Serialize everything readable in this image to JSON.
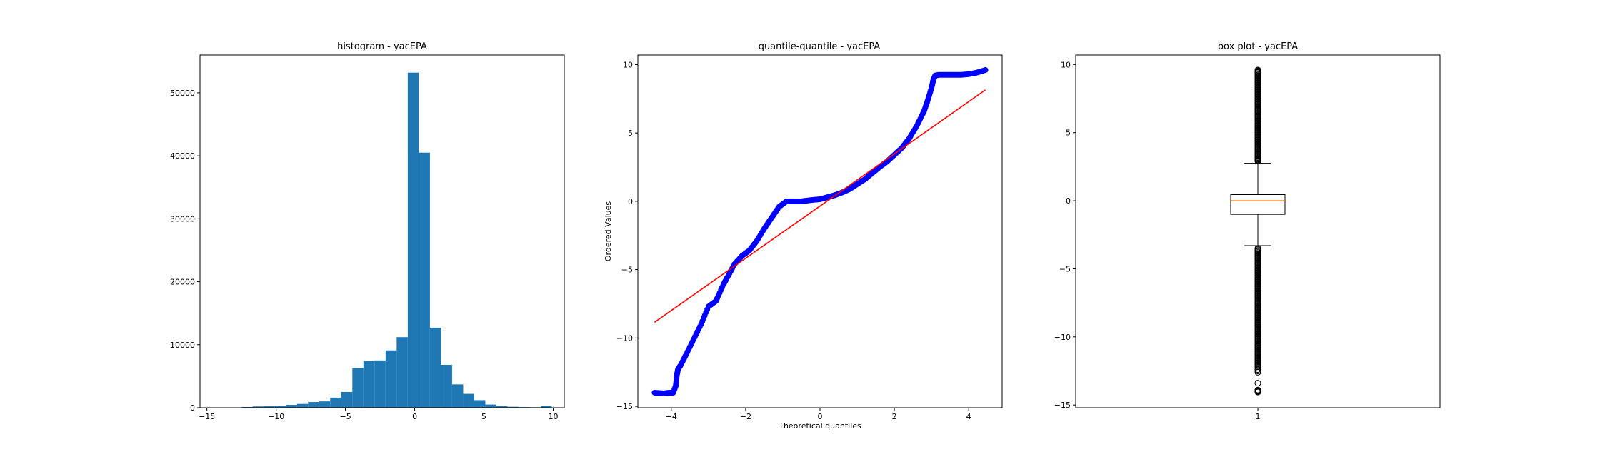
{
  "chart_data": [
    {
      "type": "bar",
      "title": "histogram - yacEPA",
      "xlabel": "",
      "ylabel": "",
      "xlim": [
        -15.5,
        10.8
      ],
      "ylim": [
        0,
        56000
      ],
      "xticks": [
        -15,
        -10,
        -5,
        0,
        5,
        10
      ],
      "yticks": [
        0,
        10000,
        20000,
        30000,
        40000,
        50000
      ],
      "bars": [
        {
          "x0": -14.1,
          "x1": -13.3,
          "value": 20
        },
        {
          "x0": -13.3,
          "x1": -12.5,
          "value": 50
        },
        {
          "x0": -12.5,
          "x1": -11.7,
          "value": 120
        },
        {
          "x0": -11.7,
          "x1": -10.9,
          "value": 200
        },
        {
          "x0": -10.9,
          "x1": -10.1,
          "value": 250
        },
        {
          "x0": -10.1,
          "x1": -9.3,
          "value": 300
        },
        {
          "x0": -9.3,
          "x1": -8.5,
          "value": 450
        },
        {
          "x0": -8.5,
          "x1": -7.7,
          "value": 600
        },
        {
          "x0": -7.7,
          "x1": -6.9,
          "value": 900
        },
        {
          "x0": -6.9,
          "x1": -6.1,
          "value": 1000
        },
        {
          "x0": -6.1,
          "x1": -5.3,
          "value": 1600
        },
        {
          "x0": -5.3,
          "x1": -4.5,
          "value": 2500
        },
        {
          "x0": -4.5,
          "x1": -3.7,
          "value": 6300
        },
        {
          "x0": -3.7,
          "x1": -2.9,
          "value": 7400
        },
        {
          "x0": -2.9,
          "x1": -2.1,
          "value": 7500
        },
        {
          "x0": -2.1,
          "x1": -1.3,
          "value": 9100
        },
        {
          "x0": -1.3,
          "x1": -0.5,
          "value": 11200
        },
        {
          "x0": -0.5,
          "x1": 0.3,
          "value": 53200
        },
        {
          "x0": 0.3,
          "x1": 1.1,
          "value": 40500
        },
        {
          "x0": 1.1,
          "x1": 1.9,
          "value": 12700
        },
        {
          "x0": 1.9,
          "x1": 2.7,
          "value": 6800
        },
        {
          "x0": 2.7,
          "x1": 3.5,
          "value": 3700
        },
        {
          "x0": 3.5,
          "x1": 4.3,
          "value": 2200
        },
        {
          "x0": 4.3,
          "x1": 5.1,
          "value": 1200
        },
        {
          "x0": 5.1,
          "x1": 5.9,
          "value": 500
        },
        {
          "x0": 5.9,
          "x1": 6.7,
          "value": 250
        },
        {
          "x0": 6.7,
          "x1": 7.5,
          "value": 150
        },
        {
          "x0": 7.5,
          "x1": 8.3,
          "value": 100
        },
        {
          "x0": 8.3,
          "x1": 9.1,
          "value": 80
        },
        {
          "x0": 9.1,
          "x1": 9.9,
          "value": 300
        }
      ],
      "color": "#1f77b4"
    },
    {
      "type": "scatter",
      "title": "quantile-quantile - yacEPA",
      "xlabel": "Theoretical quantiles",
      "ylabel": "Ordered Values",
      "xlim": [
        -4.9,
        4.9
      ],
      "ylim": [
        -15.1,
        10.7
      ],
      "xticks": [
        -4,
        -2,
        0,
        2,
        4
      ],
      "yticks": [
        -15,
        -10,
        -5,
        0,
        5,
        10
      ],
      "points": {
        "x": [
          -4.45,
          -4.2,
          -4.05,
          -3.95,
          -3.88,
          -3.85,
          -3.82,
          -3.8,
          -3.75,
          -3.6,
          -3.4,
          -3.2,
          -3.0,
          -2.8,
          -2.6,
          -2.5,
          -2.3,
          -2.1,
          -1.9,
          -1.7,
          -1.5,
          -1.3,
          -1.1,
          -0.9,
          -0.7,
          -0.5,
          -0.35,
          -0.2,
          0.0,
          0.2,
          0.4,
          0.6,
          0.8,
          1.0,
          1.2,
          1.4,
          1.6,
          1.8,
          2.0,
          2.2,
          2.4,
          2.6,
          2.8,
          2.9,
          3.0,
          3.05,
          3.1,
          3.2,
          3.4,
          3.6,
          3.8,
          4.0,
          4.2,
          4.45
        ],
        "y": [
          -14.0,
          -14.05,
          -14.0,
          -14.0,
          -13.5,
          -12.7,
          -12.3,
          -12.2,
          -12.0,
          -11.2,
          -10.1,
          -9.0,
          -7.7,
          -7.3,
          -6.1,
          -5.6,
          -4.6,
          -4.0,
          -3.6,
          -2.9,
          -2.0,
          -1.2,
          -0.4,
          0.0,
          0.0,
          0.0,
          0.05,
          0.1,
          0.15,
          0.3,
          0.45,
          0.65,
          0.9,
          1.25,
          1.6,
          2.05,
          2.5,
          2.9,
          3.4,
          3.9,
          4.6,
          5.5,
          6.6,
          7.4,
          8.3,
          8.9,
          9.2,
          9.25,
          9.25,
          9.25,
          9.25,
          9.3,
          9.4,
          9.6
        ]
      },
      "fit_line": {
        "x": [
          -4.45,
          4.45
        ],
        "y": [
          -8.85,
          8.15
        ]
      },
      "point_color": "#0000ff",
      "line_color": "#ff0000"
    },
    {
      "type": "box",
      "title": "box plot - yacEPA",
      "xlabel": "",
      "ylabel": "",
      "ylim": [
        -15.2,
        10.7
      ],
      "yticks": [
        -15,
        -10,
        -5,
        0,
        5,
        10
      ],
      "xticks": [
        1
      ],
      "box": {
        "median": 0.0,
        "q1": -1.0,
        "q3": 0.45,
        "whisker_low": -3.3,
        "whisker_high": 2.75,
        "fliers_high": [
          2.9,
          3.1,
          3.4,
          3.7,
          4.0,
          4.3,
          4.6,
          4.9,
          5.2,
          5.5,
          5.8,
          6.1,
          6.4,
          6.7,
          7.0,
          7.3,
          7.6,
          7.9,
          8.2,
          8.5,
          8.8,
          9.1,
          9.4,
          9.6
        ],
        "fliers_low": [
          -3.5,
          -3.8,
          -4.1,
          -4.4,
          -4.7,
          -5.0,
          -5.3,
          -5.6,
          -5.9,
          -6.2,
          -6.5,
          -6.8,
          -7.1,
          -7.4,
          -7.7,
          -8.0,
          -8.3,
          -8.6,
          -8.9,
          -9.2,
          -9.5,
          -9.8,
          -10.1,
          -10.4,
          -10.7,
          -11.0,
          -11.3,
          -11.6,
          -11.9,
          -12.2,
          -12.6,
          -13.4,
          -13.9,
          -14.05
        ]
      },
      "median_color": "#ff7f0e"
    }
  ]
}
